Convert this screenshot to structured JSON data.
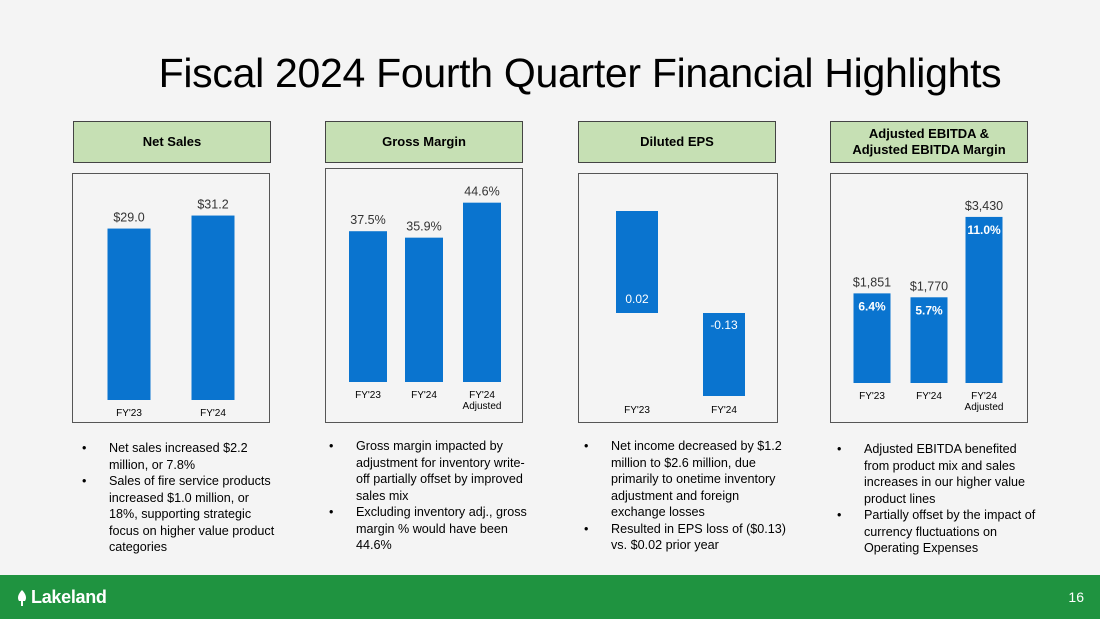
{
  "title": "Fiscal 2024 Fourth Quarter Financial Highlights",
  "footer": {
    "logo_text": "Lakeland",
    "logo_icon": "leaf-icon",
    "page_number": "16"
  },
  "colors": {
    "bar": "#0a74cf",
    "header_fill": "#c6e0b4",
    "footer": "#1f9340"
  },
  "sections": [
    {
      "header": [
        "Net Sales"
      ],
      "bullets": [
        "Net sales increased $2.2 million, or 7.8%",
        "Sales of fire service products increased $1.0 million, or 18%, supporting strategic focus on higher value product categories"
      ]
    },
    {
      "header": [
        "Gross Margin"
      ],
      "bullets": [
        "Gross margin impacted by adjustment for inventory write-off partially offset by improved sales mix",
        "Excluding inventory adj., gross margin % would have been 44.6%"
      ]
    },
    {
      "header": [
        "Diluted EPS"
      ],
      "bullets": [
        "Net income decreased by $1.2 million to $2.6 million, due primarily to onetime inventory adjustment and foreign exchange losses",
        "Resulted in EPS loss of ($0.13) vs. $0.02 prior year"
      ]
    },
    {
      "header": [
        "Adjusted EBITDA &",
        "Adjusted EBITDA Margin"
      ],
      "bullets": [
        "Adjusted EBITDA benefited from product mix and sales increases in our higher value product lines",
        "Partially offset by the impact of currency fluctuations on Operating Expenses"
      ]
    }
  ],
  "chart_data": [
    {
      "type": "bar",
      "categories": [
        [
          "FY'23"
        ],
        [
          "FY'24"
        ]
      ],
      "values": [
        29.0,
        31.2
      ],
      "labels": [
        "$29.0",
        "$31.2"
      ],
      "ylim": [
        0,
        34
      ]
    },
    {
      "type": "bar",
      "categories": [
        [
          "FY'23"
        ],
        [
          "FY'24"
        ],
        [
          "FY'24",
          "Adjusted"
        ]
      ],
      "values": [
        37.5,
        35.9,
        44.6
      ],
      "labels": [
        "37.5%",
        "35.9%",
        "44.6%"
      ],
      "ylim": [
        0,
        48
      ]
    },
    {
      "type": "bar",
      "categories": [
        [
          "FY'23"
        ],
        [
          "FY'24"
        ]
      ],
      "values": [
        0.02,
        -0.13
      ],
      "labels": [
        "0.02",
        "-0.13"
      ],
      "ylim": [
        -0.13,
        0.02
      ],
      "labels_inside": true
    },
    {
      "type": "bar",
      "categories": [
        [
          "FY'23"
        ],
        [
          "FY'24"
        ],
        [
          "FY'24",
          "Adjusted"
        ]
      ],
      "values": [
        1851,
        1770,
        3430
      ],
      "labels": [
        "$1,851",
        "$1,770",
        "$3,430"
      ],
      "inner_labels": [
        "6.4%",
        "5.7%",
        "11.0%"
      ],
      "ylim": [
        0,
        3800
      ]
    }
  ]
}
